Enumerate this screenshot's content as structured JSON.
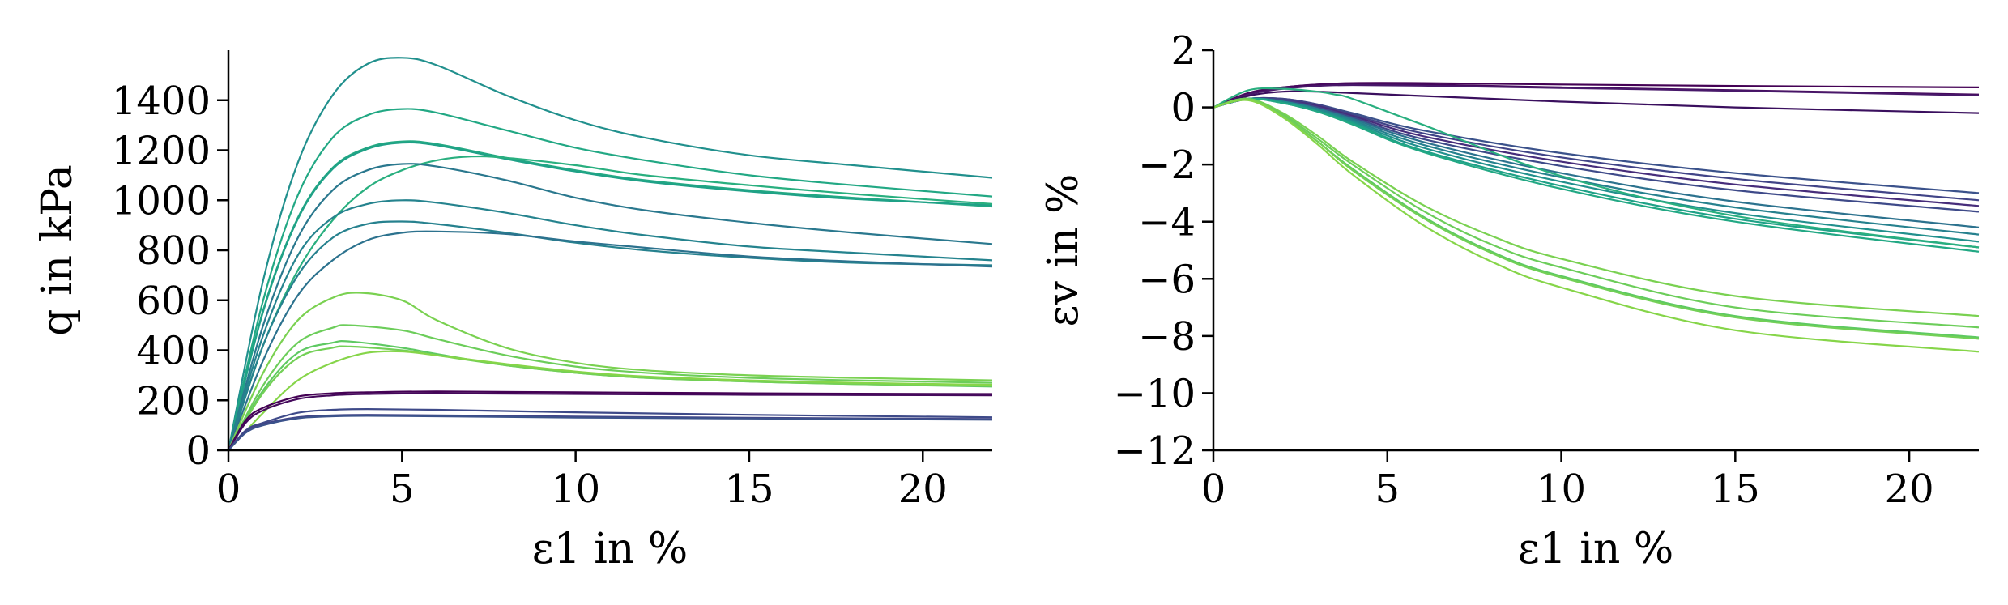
{
  "chart_data": [
    {
      "type": "line",
      "xlim": [
        0,
        22
      ],
      "ylim": [
        0,
        1600
      ],
      "xticks": [
        "0",
        "5",
        "10",
        "15",
        "20"
      ],
      "yticks": [
        "0",
        "200",
        "400",
        "600",
        "800",
        "1000",
        "1200",
        "1400"
      ],
      "xlabel": "ε1 in %",
      "ylabel": "q in kPa",
      "grid": false,
      "series": [
        {
          "color": "#21908d",
          "x": [
            0,
            1,
            2,
            3,
            4,
            5,
            6,
            8,
            10,
            12,
            15,
            18,
            22
          ],
          "y": [
            0,
            680,
            1150,
            1420,
            1545,
            1570,
            1540,
            1420,
            1320,
            1250,
            1180,
            1140,
            1090
          ]
        },
        {
          "color": "#22a884",
          "x": [
            0,
            1,
            2,
            3,
            4,
            5,
            6,
            8,
            10,
            12,
            15,
            18,
            22
          ],
          "y": [
            0,
            600,
            1020,
            1250,
            1340,
            1365,
            1350,
            1280,
            1210,
            1160,
            1100,
            1060,
            1015
          ]
        },
        {
          "color": "#23a983",
          "x": [
            0,
            1,
            2,
            3,
            4,
            5,
            6,
            8,
            10,
            12,
            15,
            18,
            22
          ],
          "y": [
            0,
            560,
            930,
            1130,
            1210,
            1235,
            1225,
            1170,
            1120,
            1080,
            1040,
            1010,
            975
          ]
        },
        {
          "color": "#1fa187",
          "x": [
            0,
            1,
            2,
            3,
            4,
            5,
            6,
            8,
            10,
            12,
            15,
            18,
            22
          ],
          "y": [
            0,
            555,
            925,
            1125,
            1205,
            1230,
            1220,
            1165,
            1115,
            1075,
            1035,
            1005,
            980
          ]
        },
        {
          "color": "#29af7f",
          "x": [
            0,
            1,
            2,
            3,
            4,
            5,
            6,
            7,
            8,
            10,
            12,
            15,
            18,
            22
          ],
          "y": [
            0,
            420,
            720,
            920,
            1050,
            1120,
            1160,
            1175,
            1170,
            1140,
            1100,
            1060,
            1025,
            985
          ]
        },
        {
          "color": "#2a788e",
          "x": [
            0,
            1,
            2,
            3,
            4,
            5,
            6,
            8,
            10,
            12,
            15,
            18,
            22
          ],
          "y": [
            0,
            500,
            850,
            1040,
            1120,
            1145,
            1135,
            1080,
            1010,
            960,
            910,
            870,
            825
          ]
        },
        {
          "color": "#25838e",
          "x": [
            0,
            1,
            2,
            3,
            4,
            5,
            6,
            8,
            10,
            12,
            15,
            18,
            22
          ],
          "y": [
            0,
            460,
            780,
            930,
            985,
            1000,
            990,
            950,
            900,
            860,
            815,
            790,
            760
          ]
        },
        {
          "color": "#26818e",
          "x": [
            0,
            1,
            2,
            3,
            4,
            5,
            6,
            8,
            10,
            12,
            15,
            18,
            22
          ],
          "y": [
            0,
            420,
            700,
            850,
            905,
            915,
            905,
            870,
            830,
            800,
            770,
            750,
            740
          ]
        },
        {
          "color": "#2c728e",
          "x": [
            0,
            1,
            2,
            3,
            4,
            5,
            6,
            8,
            10,
            12,
            15,
            18,
            22
          ],
          "y": [
            0,
            360,
            620,
            760,
            840,
            870,
            875,
            865,
            835,
            810,
            775,
            755,
            735
          ]
        },
        {
          "color": "#7ad151",
          "x": [
            0,
            1,
            2,
            3,
            3.8,
            5,
            6,
            8,
            10,
            12,
            15,
            18,
            22
          ],
          "y": [
            0,
            310,
            520,
            610,
            630,
            600,
            520,
            410,
            350,
            320,
            300,
            290,
            280
          ]
        },
        {
          "color": "#6ccd5a",
          "x": [
            0,
            1,
            2,
            3,
            3.5,
            5,
            6,
            8,
            10,
            12,
            15,
            18,
            22
          ],
          "y": [
            0,
            260,
            430,
            490,
            500,
            480,
            445,
            380,
            335,
            310,
            290,
            280,
            270
          ]
        },
        {
          "color": "#5ec962",
          "x": [
            0,
            1,
            2,
            3,
            3.5,
            5,
            6,
            8,
            10,
            12,
            15,
            18,
            22
          ],
          "y": [
            0,
            240,
            390,
            430,
            435,
            410,
            385,
            340,
            310,
            290,
            275,
            265,
            255
          ]
        },
        {
          "color": "#73d056",
          "x": [
            0,
            1,
            2,
            3,
            3.5,
            5,
            6,
            8,
            10,
            12,
            15,
            18,
            22
          ],
          "y": [
            0,
            230,
            370,
            410,
            415,
            400,
            380,
            340,
            310,
            290,
            275,
            265,
            258
          ]
        },
        {
          "color": "#86d549",
          "x": [
            0,
            1,
            2,
            3,
            4,
            5,
            6,
            8,
            10,
            12,
            15,
            18,
            22
          ],
          "y": [
            0,
            150,
            280,
            350,
            390,
            395,
            380,
            345,
            315,
            295,
            280,
            270,
            262
          ]
        },
        {
          "color": "#440154",
          "x": [
            0,
            0.5,
            1,
            2,
            3,
            4,
            6,
            10,
            15,
            22
          ],
          "y": [
            0,
            120,
            170,
            215,
            228,
            232,
            235,
            232,
            228,
            225
          ]
        },
        {
          "color": "#450a5c",
          "x": [
            0,
            0.5,
            1,
            2,
            3,
            4,
            6,
            10,
            15,
            22
          ],
          "y": [
            0,
            110,
            160,
            205,
            220,
            225,
            228,
            225,
            222,
            220
          ]
        },
        {
          "color": "#3e4a89",
          "x": [
            0,
            0.5,
            1,
            2,
            3,
            4,
            6,
            10,
            15,
            22
          ],
          "y": [
            0,
            80,
            110,
            150,
            162,
            165,
            162,
            152,
            142,
            132
          ]
        },
        {
          "color": "#414487",
          "x": [
            0,
            0.5,
            1,
            2,
            3,
            4,
            6,
            10,
            15,
            22
          ],
          "y": [
            0,
            75,
            105,
            132,
            140,
            142,
            140,
            135,
            130,
            125
          ]
        },
        {
          "color": "#3b528b",
          "x": [
            0,
            0.5,
            1,
            2,
            3,
            4,
            6,
            10,
            15,
            22
          ],
          "y": [
            0,
            70,
            100,
            128,
            136,
            138,
            136,
            131,
            127,
            122
          ]
        }
      ]
    },
    {
      "type": "line",
      "xlim": [
        0,
        22
      ],
      "ylim": [
        -12,
        2
      ],
      "xticks": [
        "0",
        "5",
        "10",
        "15",
        "20"
      ],
      "yticks": [
        "2",
        "0",
        "−2",
        "−4",
        "−6",
        "−8",
        "−10",
        "−12"
      ],
      "xlabel": "ε1 in %",
      "ylabel": "εv in %",
      "grid": false,
      "series": [
        {
          "color": "#440154",
          "x": [
            0,
            1,
            2,
            3,
            4,
            6,
            10,
            15,
            22
          ],
          "y": [
            0,
            0.5,
            0.7,
            0.8,
            0.85,
            0.85,
            0.8,
            0.75,
            0.7
          ]
        },
        {
          "color": "#46085c",
          "x": [
            0,
            1,
            2,
            3,
            4,
            6,
            10,
            15,
            22
          ],
          "y": [
            0,
            0.5,
            0.7,
            0.8,
            0.82,
            0.8,
            0.7,
            0.6,
            0.45
          ]
        },
        {
          "color": "#48186a",
          "x": [
            0,
            1,
            2,
            3,
            4,
            6,
            10,
            15,
            22
          ],
          "y": [
            0,
            0.45,
            0.65,
            0.75,
            0.78,
            0.76,
            0.68,
            0.58,
            0.42
          ]
        },
        {
          "color": "#3a0f5e",
          "x": [
            0,
            1,
            2,
            3,
            4,
            6,
            10,
            15,
            22
          ],
          "y": [
            0,
            0.4,
            0.55,
            0.55,
            0.5,
            0.4,
            0.2,
            0.0,
            -0.2
          ]
        },
        {
          "color": "#3b528b",
          "x": [
            0,
            1,
            2,
            3,
            4,
            6,
            10,
            15,
            22
          ],
          "y": [
            0,
            0.3,
            0.3,
            0.1,
            -0.2,
            -0.8,
            -1.6,
            -2.3,
            -3.0
          ]
        },
        {
          "color": "#414487",
          "x": [
            0,
            1,
            2,
            3,
            4,
            6,
            10,
            15,
            22
          ],
          "y": [
            0,
            0.3,
            0.3,
            0.1,
            -0.25,
            -0.9,
            -1.75,
            -2.5,
            -3.25
          ]
        },
        {
          "color": "#472d7b",
          "x": [
            0,
            1,
            2,
            3,
            4,
            6,
            10,
            15,
            22
          ],
          "y": [
            0,
            0.3,
            0.25,
            0.05,
            -0.3,
            -1.0,
            -1.9,
            -2.7,
            -3.45
          ]
        },
        {
          "color": "#3e4a89",
          "x": [
            0,
            1,
            2,
            3,
            4,
            6,
            10,
            15,
            22
          ],
          "y": [
            0,
            0.3,
            0.25,
            0.0,
            -0.35,
            -1.1,
            -2.05,
            -2.9,
            -3.65
          ]
        },
        {
          "color": "#2c728e",
          "x": [
            0,
            1,
            2,
            3,
            4,
            6,
            10,
            15,
            22
          ],
          "y": [
            0,
            0.3,
            0.2,
            -0.05,
            -0.4,
            -1.2,
            -2.3,
            -3.3,
            -4.2
          ]
        },
        {
          "color": "#26818e",
          "x": [
            0,
            1,
            2,
            3,
            4,
            6,
            10,
            15,
            22
          ],
          "y": [
            0,
            0.3,
            0.2,
            -0.05,
            -0.45,
            -1.3,
            -2.45,
            -3.5,
            -4.45
          ]
        },
        {
          "color": "#21908d",
          "x": [
            0,
            1,
            2,
            3,
            4,
            6,
            10,
            15,
            22
          ],
          "y": [
            0,
            0.3,
            0.2,
            -0.1,
            -0.5,
            -1.4,
            -2.6,
            -3.7,
            -4.7
          ]
        },
        {
          "color": "#1fa187",
          "x": [
            0,
            1,
            2,
            3,
            4,
            6,
            10,
            15,
            22
          ],
          "y": [
            0,
            0.3,
            0.15,
            -0.15,
            -0.55,
            -1.5,
            -2.75,
            -3.9,
            -4.9
          ]
        },
        {
          "color": "#22a884",
          "x": [
            0,
            1,
            2,
            3,
            4,
            6,
            10,
            15,
            22
          ],
          "y": [
            0,
            0.3,
            0.15,
            -0.15,
            -0.6,
            -1.55,
            -2.85,
            -4.0,
            -5.05
          ]
        },
        {
          "color": "#29af7f",
          "x": [
            0,
            1,
            2,
            3,
            3.5,
            4,
            6,
            10,
            15,
            22
          ],
          "y": [
            0,
            0.6,
            0.65,
            0.55,
            0.45,
            0.3,
            -0.6,
            -2.4,
            -3.8,
            -4.9
          ]
        },
        {
          "color": "#7ad151",
          "x": [
            0,
            1,
            2,
            3,
            4,
            6,
            8,
            10,
            15,
            22
          ],
          "y": [
            0,
            0.3,
            -0.2,
            -1.0,
            -1.9,
            -3.4,
            -4.5,
            -5.3,
            -6.6,
            -7.3
          ]
        },
        {
          "color": "#6ccd5a",
          "x": [
            0,
            1,
            2,
            3,
            4,
            6,
            8,
            10,
            15,
            22
          ],
          "y": [
            0,
            0.3,
            -0.25,
            -1.1,
            -2.0,
            -3.6,
            -4.8,
            -5.6,
            -7.0,
            -7.7
          ]
        },
        {
          "color": "#5ec962",
          "x": [
            0,
            1,
            2,
            3,
            4,
            6,
            8,
            10,
            15,
            22
          ],
          "y": [
            0,
            0.3,
            -0.3,
            -1.2,
            -2.15,
            -3.8,
            -5.05,
            -5.9,
            -7.3,
            -8.05
          ]
        },
        {
          "color": "#73d056",
          "x": [
            0,
            1,
            2,
            3,
            4,
            6,
            8,
            10,
            15,
            22
          ],
          "y": [
            0,
            0.3,
            -0.3,
            -1.2,
            -2.2,
            -3.85,
            -5.1,
            -5.95,
            -7.35,
            -8.1
          ]
        },
        {
          "color": "#86d549",
          "x": [
            0,
            1,
            2,
            3,
            4,
            6,
            8,
            10,
            15,
            22
          ],
          "y": [
            0,
            0.25,
            -0.35,
            -1.3,
            -2.35,
            -4.1,
            -5.4,
            -6.3,
            -7.8,
            -8.55
          ]
        }
      ]
    }
  ]
}
